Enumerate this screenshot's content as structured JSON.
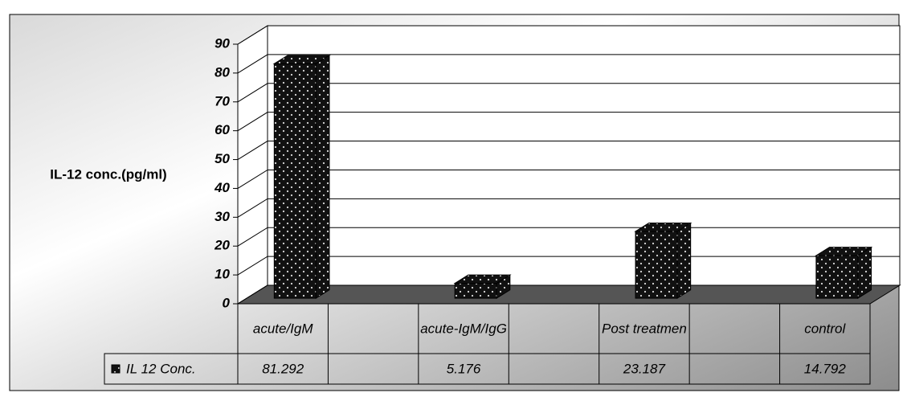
{
  "chart_data": {
    "type": "bar3d",
    "y_label": "IL-12 conc.(pg/ml)",
    "categories": [
      "acute/IgM",
      null,
      "acute-IgM/IgG",
      null,
      "Post treatmen",
      null,
      "control"
    ],
    "series": [
      {
        "name": "IL 12 Conc.",
        "color": "#111111",
        "values": [
          81.292,
          null,
          5.176,
          null,
          23.187,
          null,
          14.792
        ]
      }
    ],
    "ylim": [
      0,
      90
    ],
    "yticks": [
      0,
      10,
      20,
      30,
      40,
      50,
      60,
      70,
      80,
      90
    ],
    "grid": true
  }
}
